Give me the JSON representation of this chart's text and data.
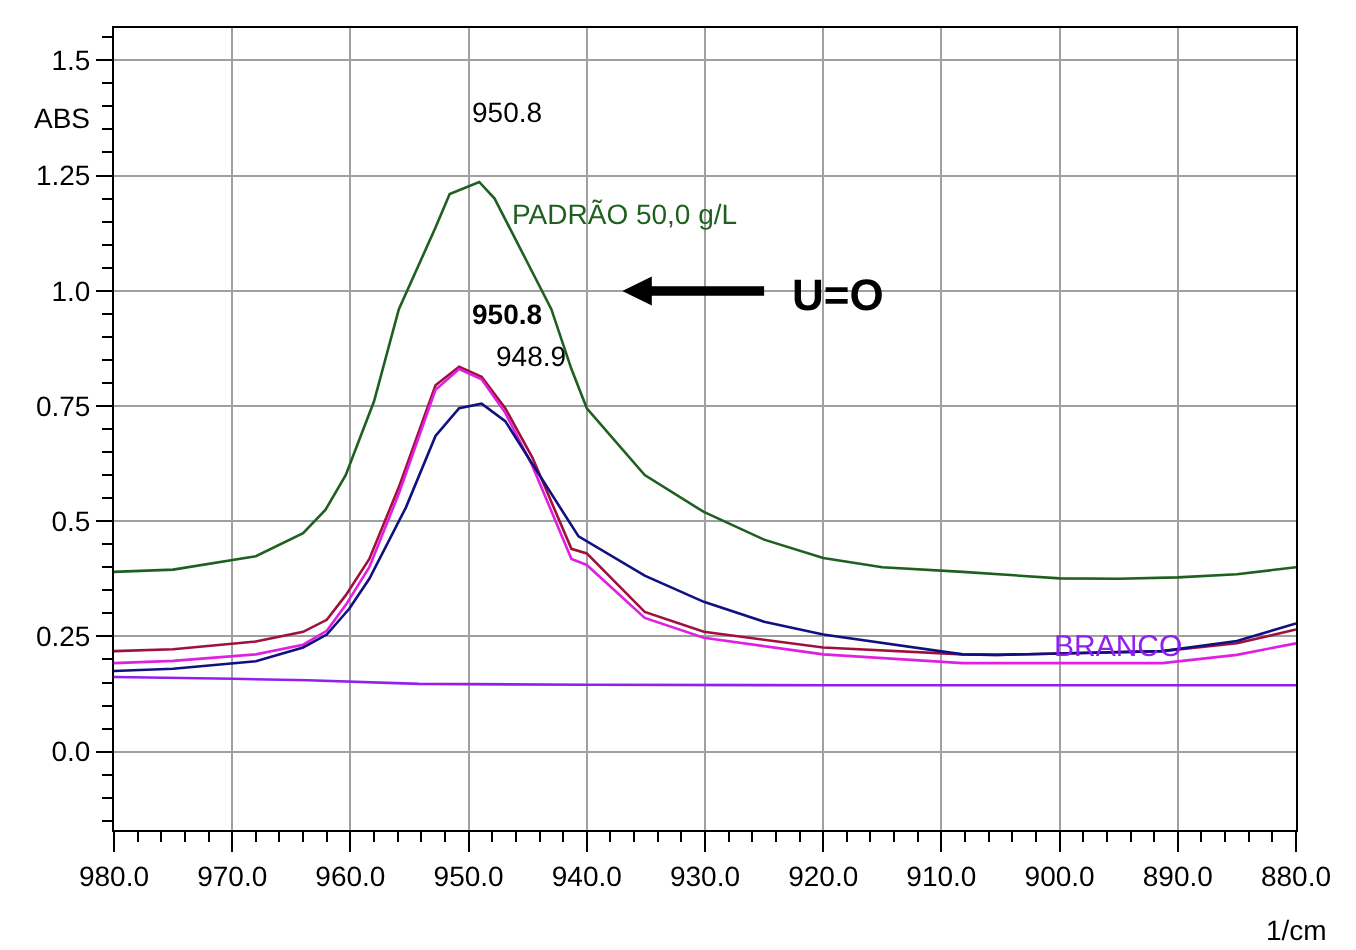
{
  "chart_data": {
    "type": "line",
    "ylabel": "ABS",
    "xlabel": "1/cm",
    "xlim": [
      980,
      880
    ],
    "xticks": [
      {
        "value": 980,
        "label": "980.0"
      },
      {
        "value": 970,
        "label": "970.0"
      },
      {
        "value": 960,
        "label": "960.0"
      },
      {
        "value": 950,
        "label": "950.0"
      },
      {
        "value": 940,
        "label": "940.0"
      },
      {
        "value": 930,
        "label": "930.0"
      },
      {
        "value": 920,
        "label": "920.0"
      },
      {
        "value": 910,
        "label": "910.0"
      },
      {
        "value": 900,
        "label": "900.0"
      },
      {
        "value": 890,
        "label": "890.0"
      },
      {
        "value": 880,
        "label": "880.0"
      }
    ],
    "ylim": [
      -0.17,
      1.57
    ],
    "yticks": [
      {
        "value": 0,
        "label": "0.0"
      },
      0.25,
      0.5,
      0.75,
      {
        "value": 1,
        "label": "1.0"
      },
      1.25,
      1.5
    ],
    "grid": true,
    "legend": false,
    "marker": "none",
    "line_style": "solid",
    "series": [
      {
        "name": "PADRÃO 50,0 g/L",
        "color": "#1f5f1f",
        "x": [
          980,
          975,
          968,
          964,
          962.1,
          960.4,
          958,
          955.9,
          952.8,
          951.6,
          949.1,
          947.8,
          944.6,
          943,
          941.3,
          940,
          935.1,
          930.1,
          925,
          920,
          915,
          908.2,
          900,
          895,
          890,
          885,
          880
        ],
        "values": [
          0.39,
          0.395,
          0.424,
          0.474,
          0.525,
          0.6,
          0.76,
          0.96,
          1.137,
          1.21,
          1.236,
          1.2,
          1.04,
          0.96,
          0.83,
          0.745,
          0.6,
          0.52,
          0.46,
          0.42,
          0.4,
          0.39,
          0.376,
          0.375,
          0.378,
          0.385,
          0.4
        ]
      },
      {
        "color": "#a0103c",
        "x": [
          980,
          975,
          968,
          964,
          962,
          960.4,
          958.4,
          955.9,
          952.8,
          950.8,
          948.9,
          946.9,
          944.6,
          941.3,
          940,
          935.1,
          930.1,
          920,
          908.2,
          905.3,
          891.3,
          885,
          880
        ],
        "values": [
          0.218,
          0.222,
          0.239,
          0.26,
          0.286,
          0.339,
          0.418,
          0.574,
          0.795,
          0.835,
          0.813,
          0.745,
          0.638,
          0.44,
          0.43,
          0.303,
          0.26,
          0.226,
          0.211,
          0.21,
          0.218,
          0.235,
          0.265
        ]
      },
      {
        "color": "#e020e0",
        "x": [
          980,
          975,
          968,
          964,
          962,
          960.4,
          958.4,
          955.9,
          952.8,
          950.8,
          948.9,
          946.9,
          944.6,
          941.3,
          940,
          935.1,
          930.1,
          920,
          908.2,
          905.3,
          891.3,
          885,
          880
        ],
        "values": [
          0.192,
          0.197,
          0.211,
          0.232,
          0.262,
          0.318,
          0.4,
          0.56,
          0.785,
          0.83,
          0.808,
          0.735,
          0.62,
          0.418,
          0.405,
          0.29,
          0.247,
          0.211,
          0.192,
          0.192,
          0.192,
          0.21,
          0.235
        ]
      },
      {
        "color": "#101080",
        "x": [
          980,
          975,
          968,
          964,
          962,
          960.1,
          958.4,
          955.3,
          952.8,
          950.8,
          948.9,
          946.9,
          944.6,
          940.7,
          935.1,
          930.1,
          925,
          920,
          908.2,
          905.3,
          891.3,
          885,
          880
        ],
        "values": [
          0.175,
          0.18,
          0.196,
          0.226,
          0.254,
          0.31,
          0.375,
          0.53,
          0.685,
          0.745,
          0.755,
          0.717,
          0.624,
          0.467,
          0.382,
          0.325,
          0.282,
          0.254,
          0.211,
          0.21,
          0.218,
          0.24,
          0.278
        ]
      },
      {
        "name": "BRANCO",
        "color": "#9020f0",
        "x": [
          980,
          970,
          963.6,
          954.2,
          940,
          920,
          900,
          880
        ],
        "values": [
          0.162,
          0.158,
          0.155,
          0.147,
          0.145,
          0.144,
          0.144,
          0.144
        ]
      }
    ],
    "annotations": [
      "950.8",
      "950.8",
      "948.9",
      "U=O"
    ]
  }
}
